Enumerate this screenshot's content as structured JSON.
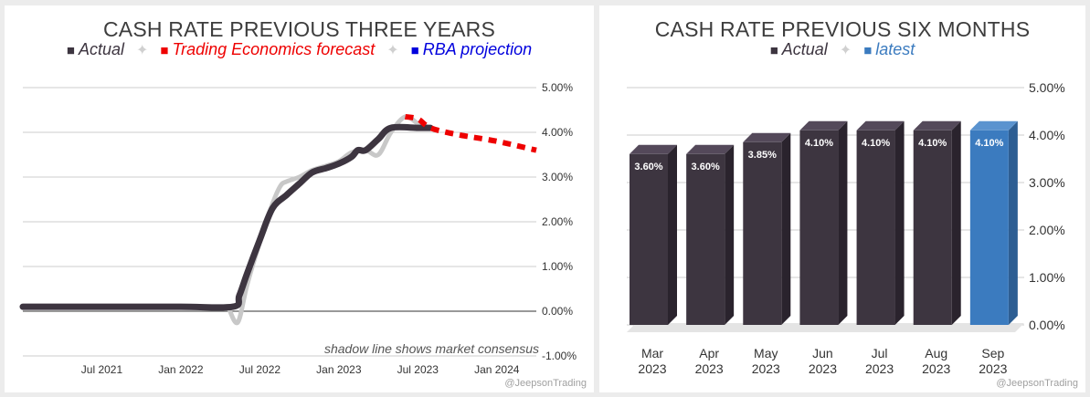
{
  "chart_data": [
    {
      "type": "line",
      "title": "CASH RATE PREVIOUS THREE YEARS",
      "legend": [
        {
          "name": "Actual",
          "color": "#3d3540"
        },
        {
          "name": "Trading Economics forecast",
          "color": "#ee0000"
        },
        {
          "name": "RBA projection",
          "color": "#0000dd"
        }
      ],
      "x_ticks": [
        "Jul 2021",
        "Jan 2022",
        "Jul 2022",
        "Jan 2023",
        "Jul 2023",
        "Jan 2024"
      ],
      "y_ticks": [
        "5.00%",
        "4.00%",
        "3.00%",
        "2.00%",
        "1.00%",
        "0.00%",
        "-1.00%"
      ],
      "ylim": [
        -1,
        5
      ],
      "xlim": [
        2021.0,
        2024.25
      ],
      "annotation": "shadow line shows market consensus",
      "series": [
        {
          "name": "Actual",
          "points": [
            [
              2021.0,
              0.1
            ],
            [
              2021.5,
              0.1
            ],
            [
              2022.0,
              0.1
            ],
            [
              2022.33,
              0.1
            ],
            [
              2022.37,
              0.35
            ],
            [
              2022.42,
              0.85
            ],
            [
              2022.5,
              1.6
            ],
            [
              2022.58,
              2.3
            ],
            [
              2022.67,
              2.6
            ],
            [
              2022.75,
              2.85
            ],
            [
              2022.83,
              3.1
            ],
            [
              2022.92,
              3.2
            ],
            [
              2023.0,
              3.3
            ],
            [
              2023.08,
              3.45
            ],
            [
              2023.12,
              3.6
            ],
            [
              2023.17,
              3.6
            ],
            [
              2023.25,
              3.85
            ],
            [
              2023.33,
              4.1
            ],
            [
              2023.5,
              4.1
            ],
            [
              2023.58,
              4.1
            ]
          ]
        },
        {
          "name": "Market consensus",
          "points": [
            [
              2022.3,
              0.1
            ],
            [
              2022.36,
              -0.25
            ],
            [
              2022.42,
              0.6
            ],
            [
              2022.5,
              1.55
            ],
            [
              2022.58,
              2.4
            ],
            [
              2022.63,
              2.8
            ],
            [
              2022.67,
              2.9
            ],
            [
              2022.75,
              3.0
            ],
            [
              2022.83,
              3.15
            ],
            [
              2022.92,
              3.25
            ],
            [
              2023.0,
              3.35
            ],
            [
              2023.08,
              3.55
            ],
            [
              2023.17,
              3.6
            ],
            [
              2023.25,
              3.5
            ],
            [
              2023.33,
              4.0
            ],
            [
              2023.42,
              4.35
            ],
            [
              2023.5,
              4.2
            ],
            [
              2023.58,
              4.1
            ]
          ]
        },
        {
          "name": "Trading Economics forecast",
          "points": [
            [
              2023.42,
              4.35
            ],
            [
              2023.5,
              4.3
            ],
            [
              2023.58,
              4.1
            ],
            [
              2023.75,
              3.95
            ],
            [
              2024.0,
              3.8
            ],
            [
              2024.25,
              3.6
            ]
          ]
        }
      ]
    },
    {
      "type": "bar",
      "title": "CASH RATE PREVIOUS SIX MONTHS",
      "legend": [
        {
          "name": "Actual",
          "color": "#3d3540"
        },
        {
          "name": "latest",
          "color": "#3b7bbf"
        }
      ],
      "categories": [
        [
          "Mar",
          "2023"
        ],
        [
          "Apr",
          "2023"
        ],
        [
          "May",
          "2023"
        ],
        [
          "Jun",
          "2023"
        ],
        [
          "Jul",
          "2023"
        ],
        [
          "Aug",
          "2023"
        ],
        [
          "Sep",
          "2023"
        ]
      ],
      "values": [
        3.6,
        3.6,
        3.85,
        4.1,
        4.1,
        4.1,
        4.1
      ],
      "labels": [
        "3.60%",
        "3.60%",
        "3.85%",
        "4.10%",
        "4.10%",
        "4.10%",
        "4.10%"
      ],
      "y_ticks": [
        "5.00%",
        "4.00%",
        "3.00%",
        "2.00%",
        "1.00%",
        "0.00%"
      ],
      "ylim": [
        0,
        5
      ]
    }
  ],
  "credit": "@JeepsonTrading",
  "colors": {
    "actual": "#3d3540",
    "forecast": "#ee0000",
    "rba": "#0000dd",
    "latest": "#3b7bbf",
    "shadow": "#c8c8c8"
  }
}
